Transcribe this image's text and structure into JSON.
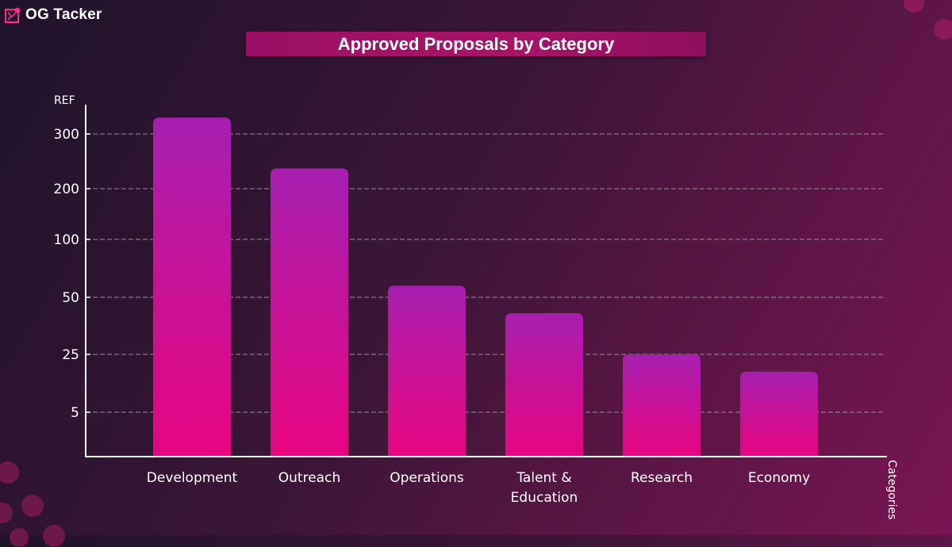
{
  "app": {
    "name": "OG Tacker",
    "logo_icon": "circuit-logo-icon"
  },
  "colors": {
    "bar_top": "#a61fb0",
    "bar_bottom": "#e8057f",
    "banner": "#a81466",
    "grid": "#9a8a9a",
    "decor": "#8a1a5a"
  },
  "chart_data": {
    "type": "bar",
    "title": "Approved Proposals by Category",
    "ylabel": "REF",
    "xlabel": "Categories",
    "y_tick_labels": [
      "5",
      "25",
      "50",
      "100",
      "200",
      "300"
    ],
    "categories": [
      [
        "Development"
      ],
      [
        "Outreach"
      ],
      [
        "Operations"
      ],
      [
        "Talent &",
        "Education"
      ],
      [
        "Research"
      ],
      [
        "Economy"
      ]
    ],
    "values": [
      330,
      237,
      60,
      43,
      25,
      19
    ],
    "grid": true,
    "legend": "none"
  }
}
